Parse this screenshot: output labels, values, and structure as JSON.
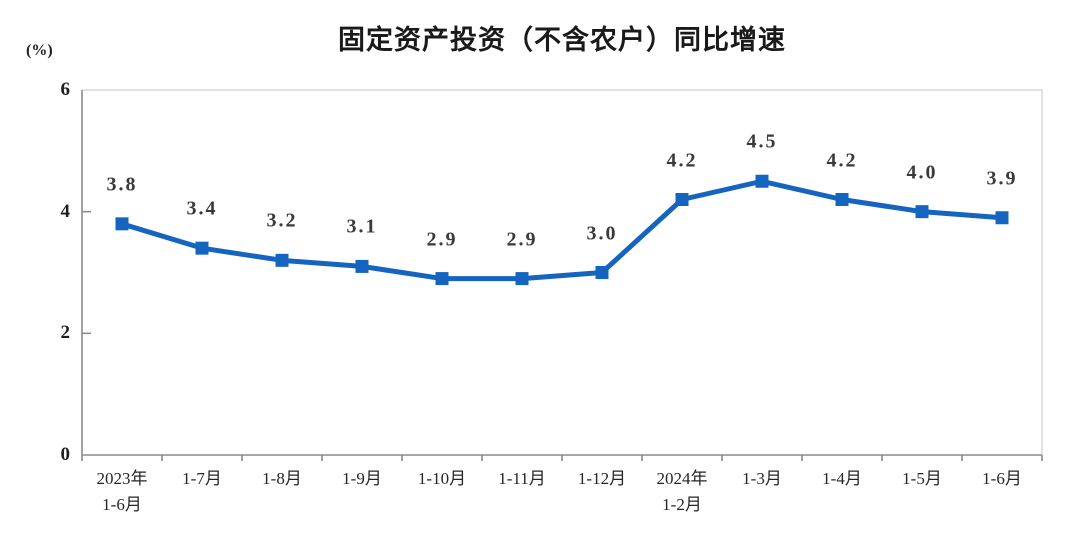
{
  "chart_data": {
    "type": "line",
    "title": "固定资产投资（不含农户）同比增速",
    "unit_label": "(%)",
    "categories": [
      "2023年\n1-6月",
      "1-7月",
      "1-8月",
      "1-9月",
      "1-10月",
      "1-11月",
      "1-12月",
      "2024年\n1-2月",
      "1-3月",
      "1-4月",
      "1-5月",
      "1-6月"
    ],
    "series": [
      {
        "name": "固定资产投资（不含农户）同比增速",
        "values": [
          3.8,
          3.4,
          3.2,
          3.1,
          2.9,
          2.9,
          3.0,
          4.2,
          4.5,
          4.2,
          4.0,
          3.9
        ],
        "labels": [
          "3.8",
          "3.4",
          "3.2",
          "3.1",
          "2.9",
          "2.9",
          "3.0",
          "4.2",
          "4.5",
          "4.2",
          "4.0",
          "3.9"
        ]
      }
    ],
    "yticks": [
      0,
      2,
      4,
      6
    ],
    "ylim": [
      0,
      6
    ],
    "xlabel": "",
    "ylabel": "(%)",
    "grid": false,
    "legend_position": "none",
    "colors": {
      "line": "#1565C0",
      "marker": "#1565C0",
      "axis": "#8C8C8C",
      "border": "#D9D9D9",
      "label_text": "#3a3a3a",
      "title_text": "#1a1a1a"
    }
  }
}
